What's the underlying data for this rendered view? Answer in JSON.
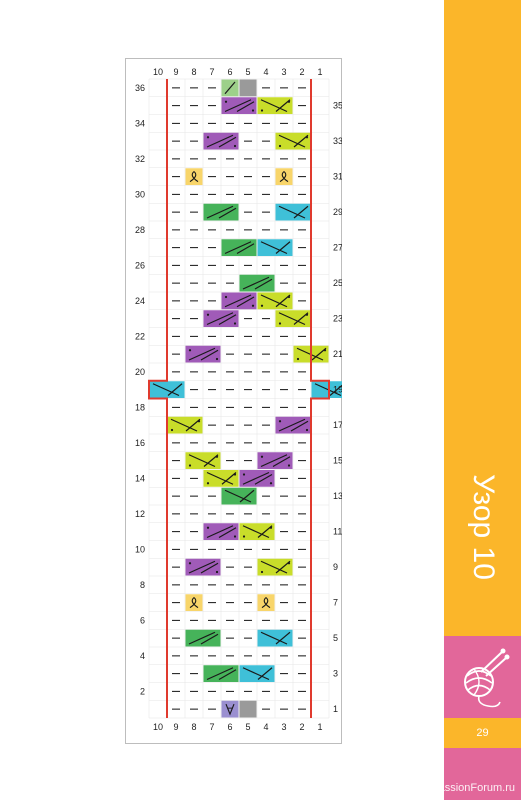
{
  "pattern_title": "Узор 10",
  "page_number": "29",
  "watermark": "PassionForum.ru",
  "column_numbers": [
    "10",
    "9",
    "8",
    "7",
    "6",
    "5",
    "4",
    "3",
    "2",
    "1"
  ],
  "row_numbers_left": [
    "36",
    "34",
    "32",
    "30",
    "28",
    "26",
    "24",
    "22",
    "20",
    "18",
    "16",
    "14",
    "12",
    "10",
    "8",
    "6",
    "4",
    "2"
  ],
  "row_numbers_right": [
    "35",
    "33",
    "31",
    "29",
    "27",
    "25",
    "23",
    "21",
    "19",
    "17",
    "15",
    "13",
    "11",
    "9",
    "7",
    "5",
    "3",
    "1"
  ],
  "colors": {
    "purple": "#a05bb8",
    "lime": "#c9dd2a",
    "green": "#46b35a",
    "cyan": "#3fc0d8",
    "yellow": "#f8d56a",
    "gray": "#9a9a9a",
    "lilac": "#9a8fd0",
    "pale_green": "#9dd08a",
    "border_red": "#e03a2e",
    "band_yellow": "#fbb62a",
    "band_pink": "#e2679a"
  },
  "chart_data": {
    "type": "table",
    "columns": 10,
    "rows": 36,
    "cells": [
      {
        "row": 36,
        "start": 6,
        "width": 1,
        "color": "pale_green",
        "symbol": "slash"
      },
      {
        "row": 36,
        "start": 5,
        "width": 1,
        "color": "gray",
        "symbol": "none"
      },
      {
        "row": 35,
        "start": 6,
        "width": 2,
        "color": "purple",
        "symbol": "cross-right-dots"
      },
      {
        "row": 35,
        "start": 4,
        "width": 2,
        "color": "lime",
        "symbol": "cross-left-dots"
      },
      {
        "row": 33,
        "start": 7,
        "width": 2,
        "color": "purple",
        "symbol": "cross-right-dots"
      },
      {
        "row": 33,
        "start": 3,
        "width": 2,
        "color": "lime",
        "symbol": "cross-left-dots"
      },
      {
        "row": 31,
        "start": 8,
        "width": 1,
        "color": "yellow",
        "symbol": "loop"
      },
      {
        "row": 31,
        "start": 3,
        "width": 1,
        "color": "yellow",
        "symbol": "loop"
      },
      {
        "row": 29,
        "start": 7,
        "width": 2,
        "color": "green",
        "symbol": "cross-right"
      },
      {
        "row": 29,
        "start": 3,
        "width": 2,
        "color": "cyan",
        "symbol": "cross-left"
      },
      {
        "row": 27,
        "start": 6,
        "width": 2,
        "color": "green",
        "symbol": "cross-right"
      },
      {
        "row": 27,
        "start": 4,
        "width": 2,
        "color": "cyan",
        "symbol": "cross-left"
      },
      {
        "row": 25,
        "start": 5,
        "width": 2,
        "color": "green",
        "symbol": "cross-right"
      },
      {
        "row": 24,
        "start": 6,
        "width": 2,
        "color": "purple",
        "symbol": "cross-right-dots"
      },
      {
        "row": 24,
        "start": 4,
        "width": 2,
        "color": "lime",
        "symbol": "cross-left-dots"
      },
      {
        "row": 23,
        "start": 7,
        "width": 2,
        "color": "purple",
        "symbol": "cross-right-dots"
      },
      {
        "row": 23,
        "start": 3,
        "width": 2,
        "color": "lime",
        "symbol": "cross-left-dots"
      },
      {
        "row": 21,
        "start": 8,
        "width": 2,
        "color": "purple",
        "symbol": "cross-right-dots"
      },
      {
        "row": 21,
        "start": 2,
        "width": 2,
        "color": "lime",
        "symbol": "cross-left-dots"
      },
      {
        "row": 19,
        "start": 10,
        "width": 2,
        "color": "cyan",
        "symbol": "cross-left"
      },
      {
        "row": 19,
        "start": 1,
        "width": 2,
        "color": "cyan",
        "symbol": "cross-left"
      },
      {
        "row": 17,
        "start": 9,
        "width": 2,
        "color": "lime",
        "symbol": "cross-left-dots"
      },
      {
        "row": 17,
        "start": 3,
        "width": 2,
        "color": "purple",
        "symbol": "cross-right-dots"
      },
      {
        "row": 15,
        "start": 8,
        "width": 2,
        "color": "lime",
        "symbol": "cross-left-dots"
      },
      {
        "row": 15,
        "start": 4,
        "width": 2,
        "color": "purple",
        "symbol": "cross-right-dots"
      },
      {
        "row": 14,
        "start": 7,
        "width": 2,
        "color": "lime",
        "symbol": "cross-left-dots"
      },
      {
        "row": 14,
        "start": 5,
        "width": 2,
        "color": "purple",
        "symbol": "cross-right-dots"
      },
      {
        "row": 13,
        "start": 6,
        "width": 2,
        "color": "green",
        "symbol": "cross-left"
      },
      {
        "row": 11,
        "start": 7,
        "width": 2,
        "color": "purple",
        "symbol": "cross-right-dots"
      },
      {
        "row": 11,
        "start": 5,
        "width": 2,
        "color": "lime",
        "symbol": "cross-left-dots"
      },
      {
        "row": 9,
        "start": 8,
        "width": 2,
        "color": "purple",
        "symbol": "cross-right-dots"
      },
      {
        "row": 9,
        "start": 4,
        "width": 2,
        "color": "lime",
        "symbol": "cross-left-dots"
      },
      {
        "row": 7,
        "start": 8,
        "width": 1,
        "color": "yellow",
        "symbol": "loop"
      },
      {
        "row": 7,
        "start": 4,
        "width": 1,
        "color": "yellow",
        "symbol": "loop"
      },
      {
        "row": 5,
        "start": 8,
        "width": 2,
        "color": "green",
        "symbol": "cross-right"
      },
      {
        "row": 5,
        "start": 4,
        "width": 2,
        "color": "cyan",
        "symbol": "cross-left"
      },
      {
        "row": 3,
        "start": 7,
        "width": 2,
        "color": "green",
        "symbol": "cross-right"
      },
      {
        "row": 3,
        "start": 5,
        "width": 2,
        "color": "cyan",
        "symbol": "cross-left"
      },
      {
        "row": 1,
        "start": 6,
        "width": 1,
        "color": "lilac",
        "symbol": "v"
      },
      {
        "row": 1,
        "start": 5,
        "width": 1,
        "color": "gray",
        "symbol": "none"
      }
    ]
  }
}
